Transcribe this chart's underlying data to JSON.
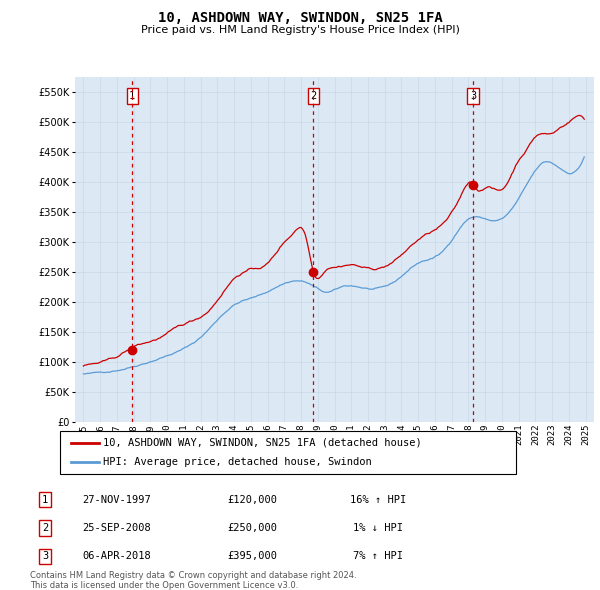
{
  "title": "10, ASHDOWN WAY, SWINDON, SN25 1FA",
  "subtitle": "Price paid vs. HM Land Registry's House Price Index (HPI)",
  "ylim": [
    0,
    575000
  ],
  "yticks": [
    0,
    50000,
    100000,
    150000,
    200000,
    250000,
    300000,
    350000,
    400000,
    450000,
    500000,
    550000
  ],
  "plot_bg": "#dce9f5",
  "transactions": [
    {
      "date_num": 1997.92,
      "price": 120000,
      "label": "1"
    },
    {
      "date_num": 2008.73,
      "price": 250000,
      "label": "2"
    },
    {
      "date_num": 2018.27,
      "price": 395000,
      "label": "3"
    }
  ],
  "vline_dates": [
    1997.92,
    2008.73,
    2018.27
  ],
  "legend_entries": [
    "10, ASHDOWN WAY, SWINDON, SN25 1FA (detached house)",
    "HPI: Average price, detached house, Swindon"
  ],
  "table_rows": [
    {
      "num": "1",
      "date": "27-NOV-1997",
      "price": "£120,000",
      "hpi": "16% ↑ HPI"
    },
    {
      "num": "2",
      "date": "25-SEP-2008",
      "price": "£250,000",
      "hpi": "1% ↓ HPI"
    },
    {
      "num": "3",
      "date": "06-APR-2018",
      "price": "£395,000",
      "hpi": "7% ↑ HPI"
    }
  ],
  "footer": "Contains HM Land Registry data © Crown copyright and database right 2024.\nThis data is licensed under the Open Government Licence v3.0.",
  "hpi_color": "#5b9bd5",
  "price_color": "#cc0000",
  "vline_color": "#cc0000",
  "xlim": [
    1994.5,
    2025.5
  ]
}
